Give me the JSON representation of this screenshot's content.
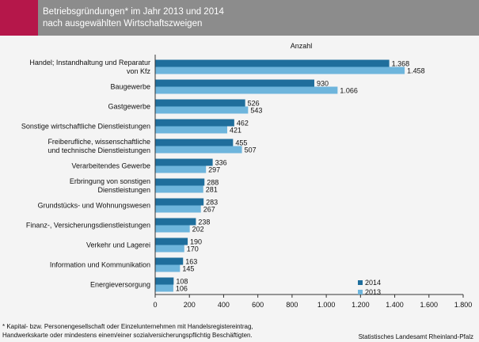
{
  "header": {
    "title_line1": "Betriebsgründungen* im Jahr  2013  und 2014",
    "title_line2": " nach ausgewählten Wirtschaftszweigen"
  },
  "chart_data": {
    "type": "bar",
    "orientation": "horizontal",
    "unit_label": "Anzahl",
    "categories": [
      [
        "Handel; Instandhaltung und Reparatur",
        "von Kfz"
      ],
      [
        "Baugewerbe"
      ],
      [
        "Gastgewerbe"
      ],
      [
        "Sonstige wirtschaftliche Dienstleistungen"
      ],
      [
        "Freiberufliche, wissenschaftliche",
        "und technische Dienstleistungen"
      ],
      [
        "Verarbeitendes Gewerbe"
      ],
      [
        "Erbringung von sonstigen",
        "Dienstleistungen"
      ],
      [
        "Grundstücks- und Wohnungswesen"
      ],
      [
        "Finanz-, Versicherungsdienstleistungen"
      ],
      [
        "Verkehr und Lagerei"
      ],
      [
        "Information und Kommunikation"
      ],
      [
        "Energieversorgung"
      ]
    ],
    "series": [
      {
        "name": "2014",
        "color": "#1f6e9c",
        "values": [
          1368,
          930,
          526,
          462,
          455,
          336,
          288,
          283,
          238,
          190,
          163,
          108
        ],
        "labels": [
          "1.368",
          "930",
          "526",
          "462",
          "455",
          "336",
          "288",
          "283",
          "238",
          "190",
          "163",
          "108"
        ]
      },
      {
        "name": "2013",
        "color": "#6eb5dc",
        "values": [
          1458,
          1066,
          543,
          421,
          507,
          297,
          281,
          267,
          202,
          170,
          145,
          106
        ],
        "labels": [
          "1.458",
          "1.066",
          "543",
          "421",
          "507",
          "297",
          "281",
          "267",
          "202",
          "170",
          "145",
          "106"
        ]
      }
    ],
    "xlim": [
      0,
      1800
    ],
    "x_ticks": [
      0,
      200,
      400,
      600,
      800,
      1000,
      1200,
      1400,
      1600,
      1800
    ],
    "x_tick_labels": [
      "0",
      "200",
      "400",
      "600",
      "800",
      "1.000",
      "1.200",
      "1.400",
      "1.600",
      "1.800"
    ],
    "grid": false,
    "legend_position": "bottom"
  },
  "footnote": {
    "line1": "* Kapital- bzw. Personengesellschaft oder Einzelunternehmen mit  Handelsregistereintrag,",
    "line2": "Handwerkskarte oder mindestens einem/einer sozialversicherungspflichtig Beschäftigten."
  },
  "source": "Statistisches Landesamt Rheinland-Pfalz"
}
